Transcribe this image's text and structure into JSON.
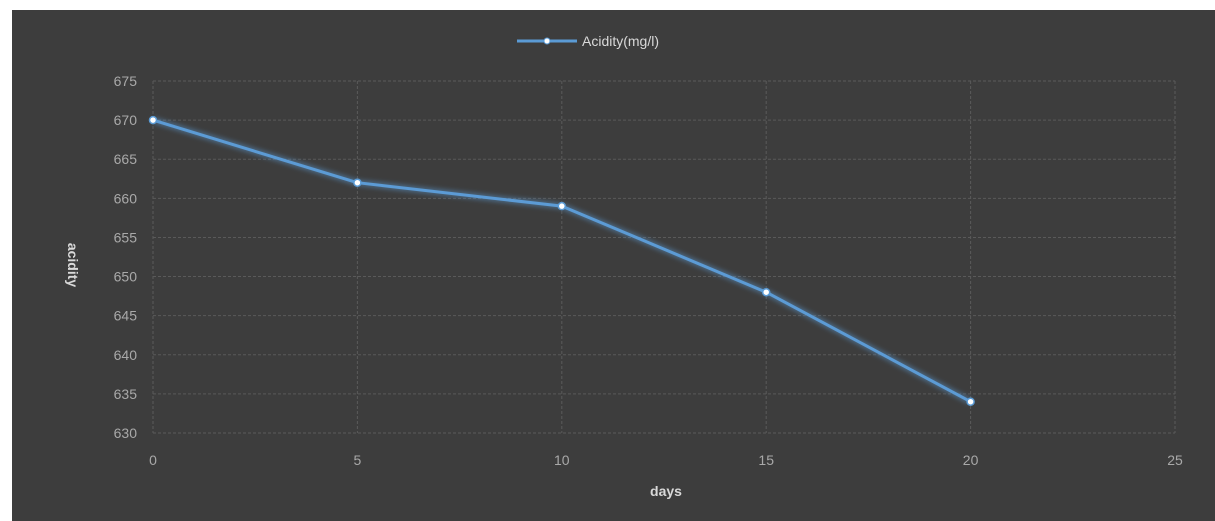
{
  "chart_data": {
    "type": "line",
    "title": "",
    "xlabel": "days",
    "ylabel": "acidity",
    "xlim": [
      0,
      25
    ],
    "ylim": [
      630,
      675
    ],
    "xticks": [
      0,
      5,
      10,
      15,
      20,
      25
    ],
    "yticks": [
      630,
      635,
      640,
      645,
      650,
      655,
      660,
      665,
      670,
      675
    ],
    "grid": true,
    "legend_position": "top",
    "series": [
      {
        "name": "Acidity(mg/l)",
        "color": "#5b9bd5",
        "x": [
          0,
          5,
          10,
          15,
          20
        ],
        "y": [
          670,
          662,
          659,
          648,
          634
        ]
      }
    ]
  },
  "colors": {
    "background": "#3d3d3d",
    "line": "#5b9bd5",
    "marker": "#ffffff",
    "tick_text": "#a9a9a9",
    "grid": "#5a5a5a"
  }
}
